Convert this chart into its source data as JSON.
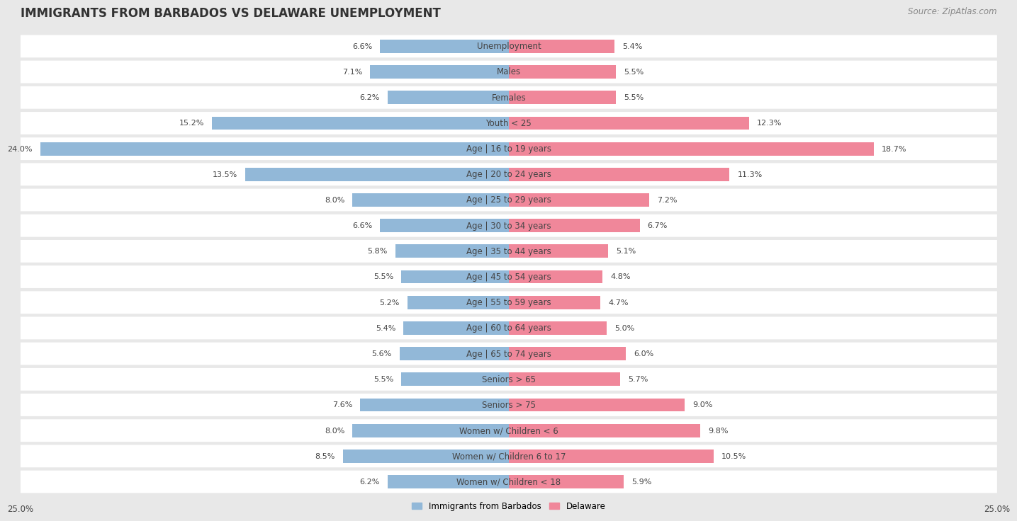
{
  "title": "IMMIGRANTS FROM BARBADOS VS DELAWARE UNEMPLOYMENT",
  "source": "Source: ZipAtlas.com",
  "categories": [
    "Unemployment",
    "Males",
    "Females",
    "Youth < 25",
    "Age | 16 to 19 years",
    "Age | 20 to 24 years",
    "Age | 25 to 29 years",
    "Age | 30 to 34 years",
    "Age | 35 to 44 years",
    "Age | 45 to 54 years",
    "Age | 55 to 59 years",
    "Age | 60 to 64 years",
    "Age | 65 to 74 years",
    "Seniors > 65",
    "Seniors > 75",
    "Women w/ Children < 6",
    "Women w/ Children 6 to 17",
    "Women w/ Children < 18"
  ],
  "left_values": [
    6.6,
    7.1,
    6.2,
    15.2,
    24.0,
    13.5,
    8.0,
    6.6,
    5.8,
    5.5,
    5.2,
    5.4,
    5.6,
    5.5,
    7.6,
    8.0,
    8.5,
    6.2
  ],
  "right_values": [
    5.4,
    5.5,
    5.5,
    12.3,
    18.7,
    11.3,
    7.2,
    6.7,
    5.1,
    4.8,
    4.7,
    5.0,
    6.0,
    5.7,
    9.0,
    9.8,
    10.5,
    5.9
  ],
  "left_color": "#92b8d8",
  "right_color": "#f0879a",
  "left_label": "Immigrants from Barbados",
  "right_label": "Delaware",
  "axis_max": 25.0,
  "bg_color": "#e8e8e8",
  "row_bg_color": "#ffffff",
  "title_fontsize": 12,
  "source_fontsize": 8.5,
  "label_fontsize": 8.5,
  "value_fontsize": 8.0,
  "cat_fontsize": 8.5
}
